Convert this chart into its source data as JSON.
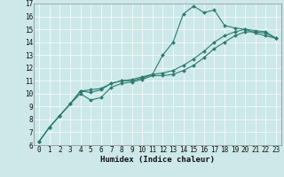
{
  "xlabel": "Humidex (Indice chaleur)",
  "bg_color": "#cce8e8",
  "line_color": "#2d7a6e",
  "xlim": [
    -0.5,
    23.5
  ],
  "ylim": [
    6,
    17
  ],
  "xticks": [
    0,
    1,
    2,
    3,
    4,
    5,
    6,
    7,
    8,
    9,
    10,
    11,
    12,
    13,
    14,
    15,
    16,
    17,
    18,
    19,
    20,
    21,
    22,
    23
  ],
  "yticks": [
    6,
    7,
    8,
    9,
    10,
    11,
    12,
    13,
    14,
    15,
    16,
    17
  ],
  "series": [
    [
      6.3,
      7.4,
      8.3,
      9.2,
      10.2,
      10.1,
      10.3,
      10.8,
      11.0,
      11.0,
      11.2,
      11.5,
      13.0,
      14.0,
      16.2,
      16.8,
      16.3,
      16.5,
      15.3,
      15.1,
      15.0,
      14.7,
      14.5,
      14.3
    ],
    [
      6.3,
      7.4,
      8.3,
      9.2,
      10.0,
      9.5,
      9.7,
      10.5,
      10.8,
      10.9,
      11.1,
      11.4,
      11.4,
      11.5,
      11.8,
      12.2,
      12.8,
      13.5,
      14.0,
      14.5,
      14.8,
      14.8,
      14.7,
      14.3
    ],
    [
      6.3,
      7.4,
      8.3,
      9.2,
      10.2,
      10.3,
      10.4,
      10.8,
      11.0,
      11.1,
      11.3,
      11.5,
      11.6,
      11.8,
      12.2,
      12.7,
      13.3,
      14.0,
      14.5,
      14.8,
      15.0,
      14.9,
      14.8,
      14.3
    ]
  ],
  "tick_fontsize": 5.5,
  "xlabel_fontsize": 6.5,
  "marker_size": 2.0,
  "line_width": 0.8
}
